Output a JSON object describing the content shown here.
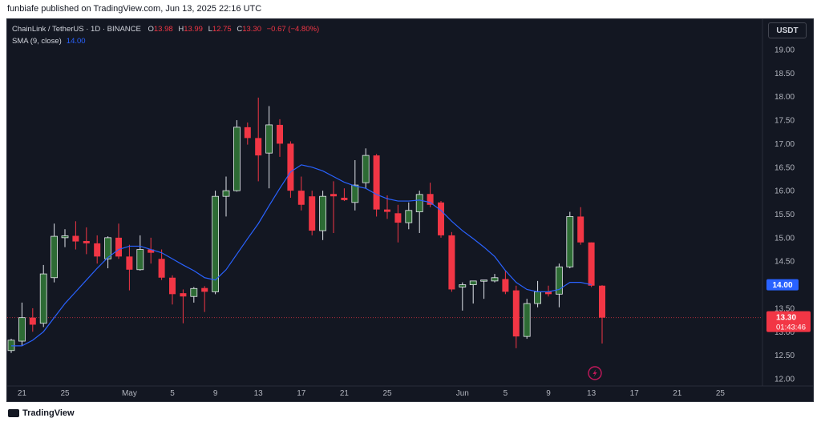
{
  "header": {
    "caption": "funbiafe published on TradingView.com, Jun 13, 2025 22:16 UTC"
  },
  "legend": {
    "symbol": "ChainLink / TetherUS · 1D · BINANCE",
    "o_label": "O",
    "o_value": "13.98",
    "h_label": "H",
    "h_value": "13.99",
    "l_label": "L",
    "l_value": "12.75",
    "c_label": "C",
    "c_value": "13.30",
    "change": "−0.67 (−4.80%)",
    "sma_label": "SMA (9, close)",
    "sma_value": "14.00"
  },
  "currency_button": "USDT",
  "price_labels": {
    "sma_value": "14.00",
    "last_price": "13.30",
    "countdown": "01:43:46"
  },
  "footer": {
    "brand": "TradingView"
  },
  "icons": {
    "flash": "lightning-icon"
  },
  "colors": {
    "up": "#4caf50",
    "down": "#f23645",
    "sma": "#2962ff",
    "background": "#131722"
  },
  "chart_data": {
    "type": "candlestick",
    "ylim": [
      12.0,
      19.0
    ],
    "yticks": [
      "12.00",
      "12.50",
      "13.00",
      "13.50",
      "14.00",
      "14.50",
      "15.00",
      "15.50",
      "16.00",
      "16.50",
      "17.00",
      "17.50",
      "18.00",
      "18.50",
      "19.00"
    ],
    "xtick_labels": [
      {
        "label": "21",
        "day": 1
      },
      {
        "label": "25",
        "day": 5
      },
      {
        "label": "May",
        "day": 11
      },
      {
        "label": "5",
        "day": 15
      },
      {
        "label": "9",
        "day": 19
      },
      {
        "label": "13",
        "day": 23
      },
      {
        "label": "17",
        "day": 27
      },
      {
        "label": "21",
        "day": 31
      },
      {
        "label": "25",
        "day": 35
      },
      {
        "label": "Jun",
        "day": 42
      },
      {
        "label": "5",
        "day": 46
      },
      {
        "label": "9",
        "day": 50
      },
      {
        "label": "13",
        "day": 54
      },
      {
        "label": "17",
        "day": 58
      },
      {
        "label": "21",
        "day": 62
      },
      {
        "label": "25",
        "day": 66
      }
    ],
    "candles": [
      {
        "o": 12.6,
        "h": 12.85,
        "l": 12.55,
        "c": 12.82
      },
      {
        "o": 12.8,
        "h": 13.62,
        "l": 12.7,
        "c": 13.3
      },
      {
        "o": 13.3,
        "h": 13.5,
        "l": 13.0,
        "c": 13.15
      },
      {
        "o": 13.18,
        "h": 14.42,
        "l": 13.1,
        "c": 14.23
      },
      {
        "o": 14.15,
        "h": 15.3,
        "l": 14.05,
        "c": 15.03
      },
      {
        "o": 15.0,
        "h": 15.18,
        "l": 14.8,
        "c": 15.04
      },
      {
        "o": 15.04,
        "h": 15.35,
        "l": 14.75,
        "c": 14.92
      },
      {
        "o": 14.93,
        "h": 15.22,
        "l": 14.65,
        "c": 14.88
      },
      {
        "o": 14.88,
        "h": 15.05,
        "l": 14.45,
        "c": 14.6
      },
      {
        "o": 14.55,
        "h": 15.03,
        "l": 14.35,
        "c": 15.0
      },
      {
        "o": 15.0,
        "h": 15.3,
        "l": 14.55,
        "c": 14.6
      },
      {
        "o": 14.6,
        "h": 14.85,
        "l": 13.88,
        "c": 14.32
      },
      {
        "o": 14.32,
        "h": 15.05,
        "l": 14.3,
        "c": 14.75
      },
      {
        "o": 14.75,
        "h": 15.0,
        "l": 14.45,
        "c": 14.68
      },
      {
        "o": 14.55,
        "h": 14.75,
        "l": 14.1,
        "c": 14.15
      },
      {
        "o": 14.15,
        "h": 14.2,
        "l": 13.58,
        "c": 13.8
      },
      {
        "o": 13.82,
        "h": 13.9,
        "l": 13.18,
        "c": 13.75
      },
      {
        "o": 13.75,
        "h": 13.95,
        "l": 13.62,
        "c": 13.92
      },
      {
        "o": 13.93,
        "h": 13.97,
        "l": 13.42,
        "c": 13.85
      },
      {
        "o": 13.85,
        "h": 16.0,
        "l": 13.8,
        "c": 15.88
      },
      {
        "o": 15.88,
        "h": 16.3,
        "l": 15.45,
        "c": 16.0
      },
      {
        "o": 16.0,
        "h": 17.5,
        "l": 15.98,
        "c": 17.35
      },
      {
        "o": 17.35,
        "h": 17.45,
        "l": 16.98,
        "c": 17.12
      },
      {
        "o": 17.12,
        "h": 17.98,
        "l": 16.2,
        "c": 16.75
      },
      {
        "o": 16.8,
        "h": 17.8,
        "l": 16.05,
        "c": 17.4
      },
      {
        "o": 17.4,
        "h": 17.52,
        "l": 16.72,
        "c": 17.0
      },
      {
        "o": 17.0,
        "h": 17.05,
        "l": 15.85,
        "c": 16.0
      },
      {
        "o": 16.0,
        "h": 16.3,
        "l": 15.58,
        "c": 15.7
      },
      {
        "o": 15.88,
        "h": 16.0,
        "l": 15.05,
        "c": 15.15
      },
      {
        "o": 15.15,
        "h": 16.0,
        "l": 14.95,
        "c": 15.88
      },
      {
        "o": 15.93,
        "h": 16.2,
        "l": 15.1,
        "c": 15.88
      },
      {
        "o": 15.85,
        "h": 16.05,
        "l": 15.78,
        "c": 15.8
      },
      {
        "o": 15.75,
        "h": 16.65,
        "l": 15.58,
        "c": 16.12
      },
      {
        "o": 16.17,
        "h": 16.9,
        "l": 16.05,
        "c": 16.75
      },
      {
        "o": 16.75,
        "h": 16.78,
        "l": 15.45,
        "c": 15.6
      },
      {
        "o": 15.6,
        "h": 15.9,
        "l": 15.4,
        "c": 15.55
      },
      {
        "o": 15.52,
        "h": 15.7,
        "l": 14.9,
        "c": 15.32
      },
      {
        "o": 15.32,
        "h": 15.75,
        "l": 15.18,
        "c": 15.58
      },
      {
        "o": 15.55,
        "h": 16.0,
        "l": 15.1,
        "c": 15.92
      },
      {
        "o": 15.93,
        "h": 16.17,
        "l": 15.65,
        "c": 15.7
      },
      {
        "o": 15.75,
        "h": 15.78,
        "l": 15.0,
        "c": 15.05
      },
      {
        "o": 15.05,
        "h": 15.12,
        "l": 13.85,
        "c": 13.9
      },
      {
        "o": 13.95,
        "h": 14.05,
        "l": 13.45,
        "c": 14.0
      },
      {
        "o": 14.0,
        "h": 14.08,
        "l": 13.6,
        "c": 14.08
      },
      {
        "o": 14.08,
        "h": 14.1,
        "l": 13.7,
        "c": 14.1
      },
      {
        "o": 14.08,
        "h": 14.23,
        "l": 14.05,
        "c": 14.15
      },
      {
        "o": 14.12,
        "h": 14.3,
        "l": 13.8,
        "c": 13.85
      },
      {
        "o": 13.88,
        "h": 13.98,
        "l": 12.65,
        "c": 12.9
      },
      {
        "o": 12.9,
        "h": 13.7,
        "l": 12.85,
        "c": 13.6
      },
      {
        "o": 13.6,
        "h": 14.08,
        "l": 13.52,
        "c": 13.85
      },
      {
        "o": 13.85,
        "h": 13.98,
        "l": 13.75,
        "c": 13.8
      },
      {
        "o": 13.8,
        "h": 14.45,
        "l": 13.52,
        "c": 14.38
      },
      {
        "o": 14.38,
        "h": 15.55,
        "l": 14.35,
        "c": 15.45
      },
      {
        "o": 15.45,
        "h": 15.65,
        "l": 14.85,
        "c": 14.9
      },
      {
        "o": 14.9,
        "h": 14.9,
        "l": 13.95,
        "c": 13.98
      },
      {
        "o": 13.98,
        "h": 13.99,
        "l": 12.75,
        "c": 13.3
      }
    ],
    "sma": [
      {
        "day": 0,
        "v": 12.7
      },
      {
        "day": 1,
        "v": 12.7
      },
      {
        "day": 2,
        "v": 12.82
      },
      {
        "day": 3,
        "v": 13.0
      },
      {
        "day": 4,
        "v": 13.3
      },
      {
        "day": 5,
        "v": 13.6
      },
      {
        "day": 6,
        "v": 13.85
      },
      {
        "day": 7,
        "v": 14.1
      },
      {
        "day": 8,
        "v": 14.35
      },
      {
        "day": 9,
        "v": 14.58
      },
      {
        "day": 10,
        "v": 14.75
      },
      {
        "day": 11,
        "v": 14.82
      },
      {
        "day": 12,
        "v": 14.82
      },
      {
        "day": 13,
        "v": 14.75
      },
      {
        "day": 14,
        "v": 14.68
      },
      {
        "day": 15,
        "v": 14.55
      },
      {
        "day": 16,
        "v": 14.42
      },
      {
        "day": 17,
        "v": 14.3
      },
      {
        "day": 18,
        "v": 14.15
      },
      {
        "day": 19,
        "v": 14.1
      },
      {
        "day": 20,
        "v": 14.32
      },
      {
        "day": 21,
        "v": 14.65
      },
      {
        "day": 22,
        "v": 14.98
      },
      {
        "day": 23,
        "v": 15.3
      },
      {
        "day": 24,
        "v": 15.68
      },
      {
        "day": 25,
        "v": 16.05
      },
      {
        "day": 26,
        "v": 16.4
      },
      {
        "day": 27,
        "v": 16.55
      },
      {
        "day": 28,
        "v": 16.5
      },
      {
        "day": 29,
        "v": 16.42
      },
      {
        "day": 30,
        "v": 16.3
      },
      {
        "day": 31,
        "v": 16.18
      },
      {
        "day": 32,
        "v": 16.1
      },
      {
        "day": 33,
        "v": 16.05
      },
      {
        "day": 34,
        "v": 15.92
      },
      {
        "day": 35,
        "v": 15.83
      },
      {
        "day": 36,
        "v": 15.78
      },
      {
        "day": 37,
        "v": 15.78
      },
      {
        "day": 38,
        "v": 15.8
      },
      {
        "day": 39,
        "v": 15.75
      },
      {
        "day": 40,
        "v": 15.58
      },
      {
        "day": 41,
        "v": 15.35
      },
      {
        "day": 42,
        "v": 15.15
      },
      {
        "day": 43,
        "v": 14.98
      },
      {
        "day": 44,
        "v": 14.8
      },
      {
        "day": 45,
        "v": 14.6
      },
      {
        "day": 46,
        "v": 14.3
      },
      {
        "day": 47,
        "v": 14.05
      },
      {
        "day": 48,
        "v": 13.9
      },
      {
        "day": 49,
        "v": 13.85
      },
      {
        "day": 50,
        "v": 13.85
      },
      {
        "day": 51,
        "v": 13.9
      },
      {
        "day": 52,
        "v": 14.05
      },
      {
        "day": 53,
        "v": 14.05
      },
      {
        "day": 54,
        "v": 14.0
      }
    ]
  }
}
